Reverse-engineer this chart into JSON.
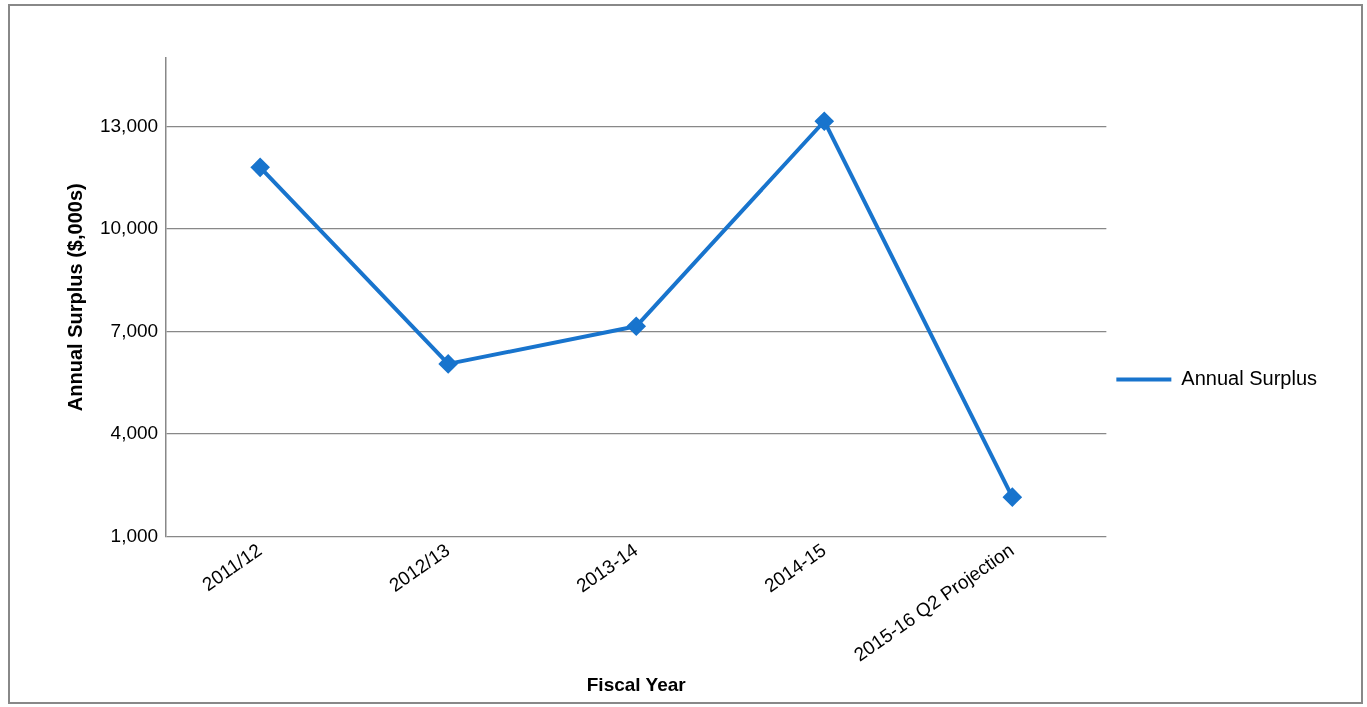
{
  "chart_data": {
    "type": "line",
    "xlabel": "Fiscal Year",
    "ylabel": "Annual Surplus ($,000s)",
    "categories": [
      "2011/12",
      "2012/13",
      "2013-14",
      "2014-15",
      "2015-16 Q2 Projection"
    ],
    "series": [
      {
        "name": "Annual Surplus",
        "color": "#1874cd",
        "values": [
          11800,
          6050,
          7150,
          13150,
          2150
        ]
      }
    ],
    "ylim": [
      1000,
      15000
    ],
    "yticks": [
      {
        "value": 1000,
        "label": "1,000"
      },
      {
        "value": 4000,
        "label": "4,000"
      },
      {
        "value": 7000,
        "label": "7,000"
      },
      {
        "value": 10000,
        "label": "10,000"
      },
      {
        "value": 13000,
        "label": "13,000"
      }
    ],
    "grid": "y",
    "legend": "right",
    "marker": "diamond",
    "line_style": "solid"
  }
}
